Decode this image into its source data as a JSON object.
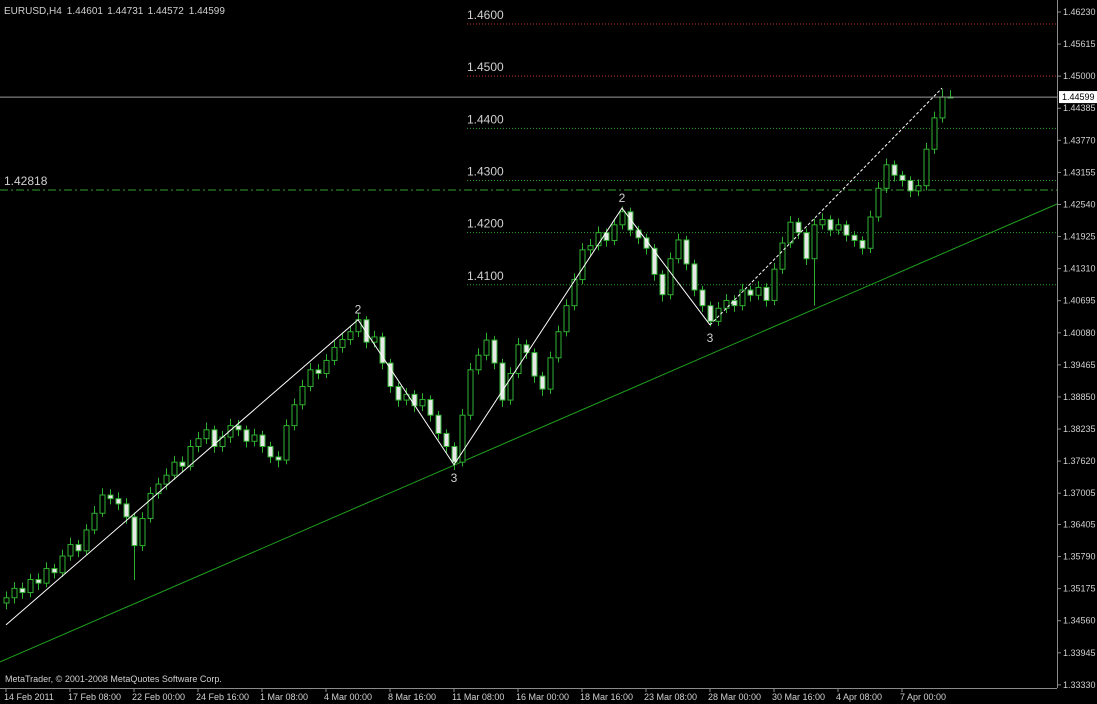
{
  "chart_data": {
    "type": "candlestick",
    "symbol": "EURUSD,H4",
    "watermark": "MetaTrader, © 2001-2008 MetaQuotes Software Corp.",
    "categories": [
      "14 Feb 2011",
      null,
      null,
      null,
      null,
      null,
      null,
      null,
      "17 Feb 08:00",
      null,
      null,
      null,
      null,
      null,
      null,
      null,
      "22 Feb 00:00",
      null,
      null,
      null,
      null,
      null,
      null,
      null,
      "24 Feb 16:00",
      null,
      null,
      null,
      null,
      null,
      null,
      null,
      "1 Mar 08:00",
      null,
      null,
      null,
      null,
      null,
      null,
      null,
      "4 Mar 00:00",
      null,
      null,
      null,
      null,
      null,
      null,
      null,
      "8 Mar 16:00",
      null,
      null,
      null,
      null,
      null,
      null,
      null,
      "11 Mar 08:00",
      null,
      null,
      null,
      null,
      null,
      null,
      null,
      "16 Mar 00:00",
      null,
      null,
      null,
      null,
      null,
      null,
      null,
      "18 Mar 16:00",
      null,
      null,
      null,
      null,
      null,
      null,
      null,
      "23 Mar 08:00",
      null,
      null,
      null,
      null,
      null,
      null,
      null,
      "28 Mar 00:00",
      null,
      null,
      null,
      null,
      null,
      null,
      null,
      "30 Mar 16:00",
      null,
      null,
      null,
      null,
      null,
      null,
      null,
      "4 Apr 08:00",
      null,
      null,
      null,
      null,
      null,
      null,
      null,
      "7 Apr 00:00",
      null,
      null,
      null,
      null,
      null,
      null
    ],
    "open": [
      1.349,
      1.35,
      1.3518,
      1.351,
      1.3535,
      1.3528,
      1.3556,
      1.3548,
      1.358,
      1.3602,
      1.359,
      1.363,
      1.3662,
      1.3697,
      1.369,
      1.368,
      1.3655,
      1.36,
      1.3652,
      1.37,
      1.3718,
      1.3735,
      1.376,
      1.3752,
      1.379,
      1.3805,
      1.3822,
      1.379,
      1.3808,
      1.383,
      1.3822,
      1.38,
      1.3812,
      1.379,
      1.377,
      1.3764,
      1.383,
      1.387,
      1.3905,
      1.3937,
      1.393,
      1.3955,
      1.398,
      1.3995,
      1.401,
      1.4033,
      1.399,
      1.4,
      1.395,
      1.3905,
      1.3879,
      1.389,
      1.3868,
      1.388,
      1.385,
      1.3815,
      1.379,
      1.376,
      1.385,
      1.3937,
      1.3965,
      1.3994,
      1.395,
      1.3879,
      1.393,
      1.3985,
      1.397,
      1.3925,
      1.39,
      1.396,
      1.401,
      1.406,
      1.411,
      1.4167,
      1.4175,
      1.42,
      1.4185,
      1.4215,
      1.424,
      1.4205,
      1.419,
      1.417,
      1.412,
      1.4081,
      1.415,
      1.4186,
      1.414,
      1.409,
      1.406,
      1.403,
      1.4055,
      1.407,
      1.406,
      1.409,
      1.408,
      1.4095,
      1.407,
      1.413,
      1.418,
      1.422,
      1.42,
      1.415,
      1.4215,
      1.4225,
      1.4205,
      1.4215,
      1.4195,
      1.4185,
      1.417,
      1.423,
      1.4285,
      1.433,
      1.431,
      1.43,
      1.428,
      1.429,
      1.436,
      1.442,
      1.44601
    ],
    "high": [
      1.3512,
      1.353,
      1.3529,
      1.3546,
      1.3547,
      1.3568,
      1.3565,
      1.3592,
      1.3615,
      1.3611,
      1.3641,
      1.3676,
      1.371,
      1.3708,
      1.3702,
      1.3691,
      1.3663,
      1.3664,
      1.3712,
      1.373,
      1.3748,
      1.3772,
      1.3771,
      1.3803,
      1.3818,
      1.3836,
      1.383,
      1.382,
      1.3843,
      1.3841,
      1.383,
      1.3824,
      1.382,
      1.3799,
      1.3781,
      1.3842,
      1.3882,
      1.3918,
      1.395,
      1.3948,
      1.3967,
      1.3992,
      1.4008,
      1.4022,
      1.4045,
      1.404,
      1.4012,
      1.4008,
      1.3958,
      1.3913,
      1.3902,
      1.3898,
      1.3892,
      1.3888,
      1.3858,
      1.3823,
      1.3798,
      1.3862,
      1.395,
      1.3978,
      1.4008,
      1.4002,
      1.3958,
      1.3942,
      1.3998,
      1.3995,
      1.3978,
      1.3933,
      1.3972,
      1.4022,
      1.4072,
      1.4122,
      1.418,
      1.4188,
      1.4212,
      1.4208,
      1.4227,
      1.425,
      1.4248,
      1.4213,
      1.4198,
      1.4178,
      1.4128,
      1.4162,
      1.4198,
      1.4194,
      1.4148,
      1.4098,
      1.4068,
      1.4067,
      1.4082,
      1.408,
      1.4102,
      1.4098,
      1.4107,
      1.4103,
      1.4142,
      1.4192,
      1.4232,
      1.4228,
      1.4208,
      1.4227,
      1.4237,
      1.4233,
      1.4227,
      1.4223,
      1.4203,
      1.4193,
      1.4242,
      1.4297,
      1.4342,
      1.4338,
      1.4318,
      1.4308,
      1.4302,
      1.4372,
      1.4432,
      1.4475,
      1.44731
    ],
    "low": [
      1.3478,
      1.3489,
      1.3498,
      1.3501,
      1.3515,
      1.352,
      1.3537,
      1.354,
      1.3571,
      1.3578,
      1.3582,
      1.3622,
      1.3655,
      1.3679,
      1.3668,
      1.3642,
      1.3534,
      1.359,
      1.3644,
      1.369,
      1.3707,
      1.3726,
      1.374,
      1.3744,
      1.3779,
      1.3795,
      1.3778,
      1.378,
      1.3797,
      1.381,
      1.3788,
      1.379,
      1.3778,
      1.3758,
      1.375,
      1.3756,
      1.3821,
      1.3861,
      1.3896,
      1.3919,
      1.3921,
      1.3946,
      1.397,
      1.3985,
      1.4,
      1.3978,
      1.398,
      1.3938,
      1.3893,
      1.3866,
      1.3869,
      1.3856,
      1.3858,
      1.3838,
      1.3803,
      1.3778,
      1.3745,
      1.3752,
      1.3841,
      1.3928,
      1.3955,
      1.3938,
      1.3866,
      1.387,
      1.3921,
      1.3958,
      1.3912,
      1.3887,
      1.3891,
      1.3951,
      1.4001,
      1.4051,
      1.4101,
      1.4156,
      1.4166,
      1.4173,
      1.4176,
      1.4206,
      1.4193,
      1.4178,
      1.4158,
      1.4108,
      1.4068,
      1.4072,
      1.4141,
      1.4128,
      1.4078,
      1.4048,
      1.402,
      1.4021,
      1.4046,
      1.4048,
      1.4051,
      1.4068,
      1.4071,
      1.4058,
      1.4061,
      1.4121,
      1.4171,
      1.4188,
      1.4138,
      1.406,
      1.4206,
      1.4193,
      1.4196,
      1.4183,
      1.4173,
      1.4158,
      1.4161,
      1.4221,
      1.4276,
      1.4298,
      1.4288,
      1.4268,
      1.427,
      1.4281,
      1.4351,
      1.4411,
      1.44572
    ],
    "close": [
      1.35,
      1.3518,
      1.351,
      1.3535,
      1.3528,
      1.3556,
      1.3548,
      1.358,
      1.3602,
      1.359,
      1.363,
      1.3662,
      1.3697,
      1.369,
      1.368,
      1.3655,
      1.36,
      1.3652,
      1.37,
      1.3718,
      1.3735,
      1.376,
      1.3752,
      1.379,
      1.3805,
      1.3822,
      1.379,
      1.3808,
      1.383,
      1.3822,
      1.38,
      1.3812,
      1.379,
      1.377,
      1.3764,
      1.383,
      1.387,
      1.3905,
      1.3937,
      1.393,
      1.3955,
      1.398,
      1.3995,
      1.401,
      1.4033,
      1.399,
      1.4,
      1.395,
      1.3905,
      1.3879,
      1.389,
      1.3868,
      1.388,
      1.385,
      1.3815,
      1.379,
      1.376,
      1.385,
      1.3937,
      1.3965,
      1.3994,
      1.395,
      1.3879,
      1.393,
      1.3985,
      1.397,
      1.3925,
      1.39,
      1.396,
      1.401,
      1.406,
      1.411,
      1.4167,
      1.4175,
      1.42,
      1.4185,
      1.4215,
      1.424,
      1.4205,
      1.419,
      1.417,
      1.412,
      1.4081,
      1.415,
      1.4186,
      1.414,
      1.409,
      1.406,
      1.403,
      1.4055,
      1.407,
      1.406,
      1.409,
      1.408,
      1.4095,
      1.407,
      1.413,
      1.418,
      1.422,
      1.42,
      1.415,
      1.4215,
      1.4225,
      1.4205,
      1.4215,
      1.4195,
      1.4185,
      1.417,
      1.423,
      1.4285,
      1.433,
      1.431,
      1.43,
      1.428,
      1.429,
      1.436,
      1.442,
      1.446,
      1.44599
    ],
    "up_color": "#000000",
    "down_color": "#e8e8e8",
    "wick_color": "#2fb02f",
    "ylim": [
      1.3327,
      1.4646
    ],
    "yticks": [
      {
        "value": 1.4623,
        "label": "1.46230"
      },
      {
        "value": 1.45615,
        "label": "1.45615"
      },
      {
        "value": 1.45,
        "label": "1.45000"
      },
      {
        "value": 1.44385,
        "label": "1.44385"
      },
      {
        "value": 1.4377,
        "label": "1.43770"
      },
      {
        "value": 1.43155,
        "label": "1.43155"
      },
      {
        "value": 1.4254,
        "label": "1.42540"
      },
      {
        "value": 1.41925,
        "label": "1.41925"
      },
      {
        "value": 1.4131,
        "label": "1.41310"
      },
      {
        "value": 1.40695,
        "label": "1.40695"
      },
      {
        "value": 1.4008,
        "label": "1.40080"
      },
      {
        "value": 1.39465,
        "label": "1.39465"
      },
      {
        "value": 1.3885,
        "label": "1.38850"
      },
      {
        "value": 1.38235,
        "label": "1.38235"
      },
      {
        "value": 1.3762,
        "label": "1.37620"
      },
      {
        "value": 1.37005,
        "label": "1.37005"
      },
      {
        "value": 1.36405,
        "label": "1.36405"
      },
      {
        "value": 1.3579,
        "label": "1.35790"
      },
      {
        "value": 1.35175,
        "label": "1.35175"
      },
      {
        "value": 1.3456,
        "label": "1.34560"
      },
      {
        "value": 1.33945,
        "label": "1.33945"
      },
      {
        "value": 1.3333,
        "label": "1.33330"
      }
    ],
    "grid": false,
    "levels": [
      {
        "value": 1.46,
        "label": "1.4600",
        "color": "#c83232",
        "style": "dot",
        "label_position": "middle"
      },
      {
        "value": 1.45,
        "label": "1.4500",
        "color": "#c83232",
        "style": "dot",
        "label_position": "middle"
      },
      {
        "value": 1.44,
        "label": "1.4400",
        "color": "#2f9f2f",
        "style": "dot",
        "label_position": "middle"
      },
      {
        "value": 1.43,
        "label": "1.4300",
        "color": "#2f9f2f",
        "style": "dot",
        "label_position": "middle"
      },
      {
        "value": 1.42,
        "label": "1.4200",
        "color": "#2f9f2f",
        "style": "dot",
        "label_position": "middle"
      },
      {
        "value": 1.41,
        "label": "1.4100",
        "color": "#2f9f2f",
        "style": "dot",
        "label_position": "middle"
      },
      {
        "value": 1.42818,
        "label": "1.42818",
        "color": "#2f9f2f",
        "style": "dashdot",
        "label_position": "left"
      }
    ],
    "trendline": {
      "x": [
        0,
        118
      ],
      "y": [
        1.3382,
        1.4166
      ],
      "color": "#1fa01f"
    },
    "wave": {
      "x": [
        0,
        44,
        56,
        77,
        88
      ],
      "y": [
        1.3448,
        1.4033,
        1.3755,
        1.4247,
        1.4023
      ],
      "color": "#ffffff"
    },
    "wave_projection": {
      "x": [
        88,
        117
      ],
      "y": [
        1.4023,
        1.4477
      ],
      "color": "#ffffff"
    },
    "annotations": [
      {
        "text": "2",
        "x": 44,
        "y": 1.4033,
        "position": "above"
      },
      {
        "text": "3",
        "x": 56,
        "y": 1.3755,
        "position": "below"
      },
      {
        "text": "2",
        "x": 77,
        "y": 1.4247,
        "position": "above"
      },
      {
        "text": "3",
        "x": 88,
        "y": 1.4023,
        "position": "below"
      }
    ]
  }
}
